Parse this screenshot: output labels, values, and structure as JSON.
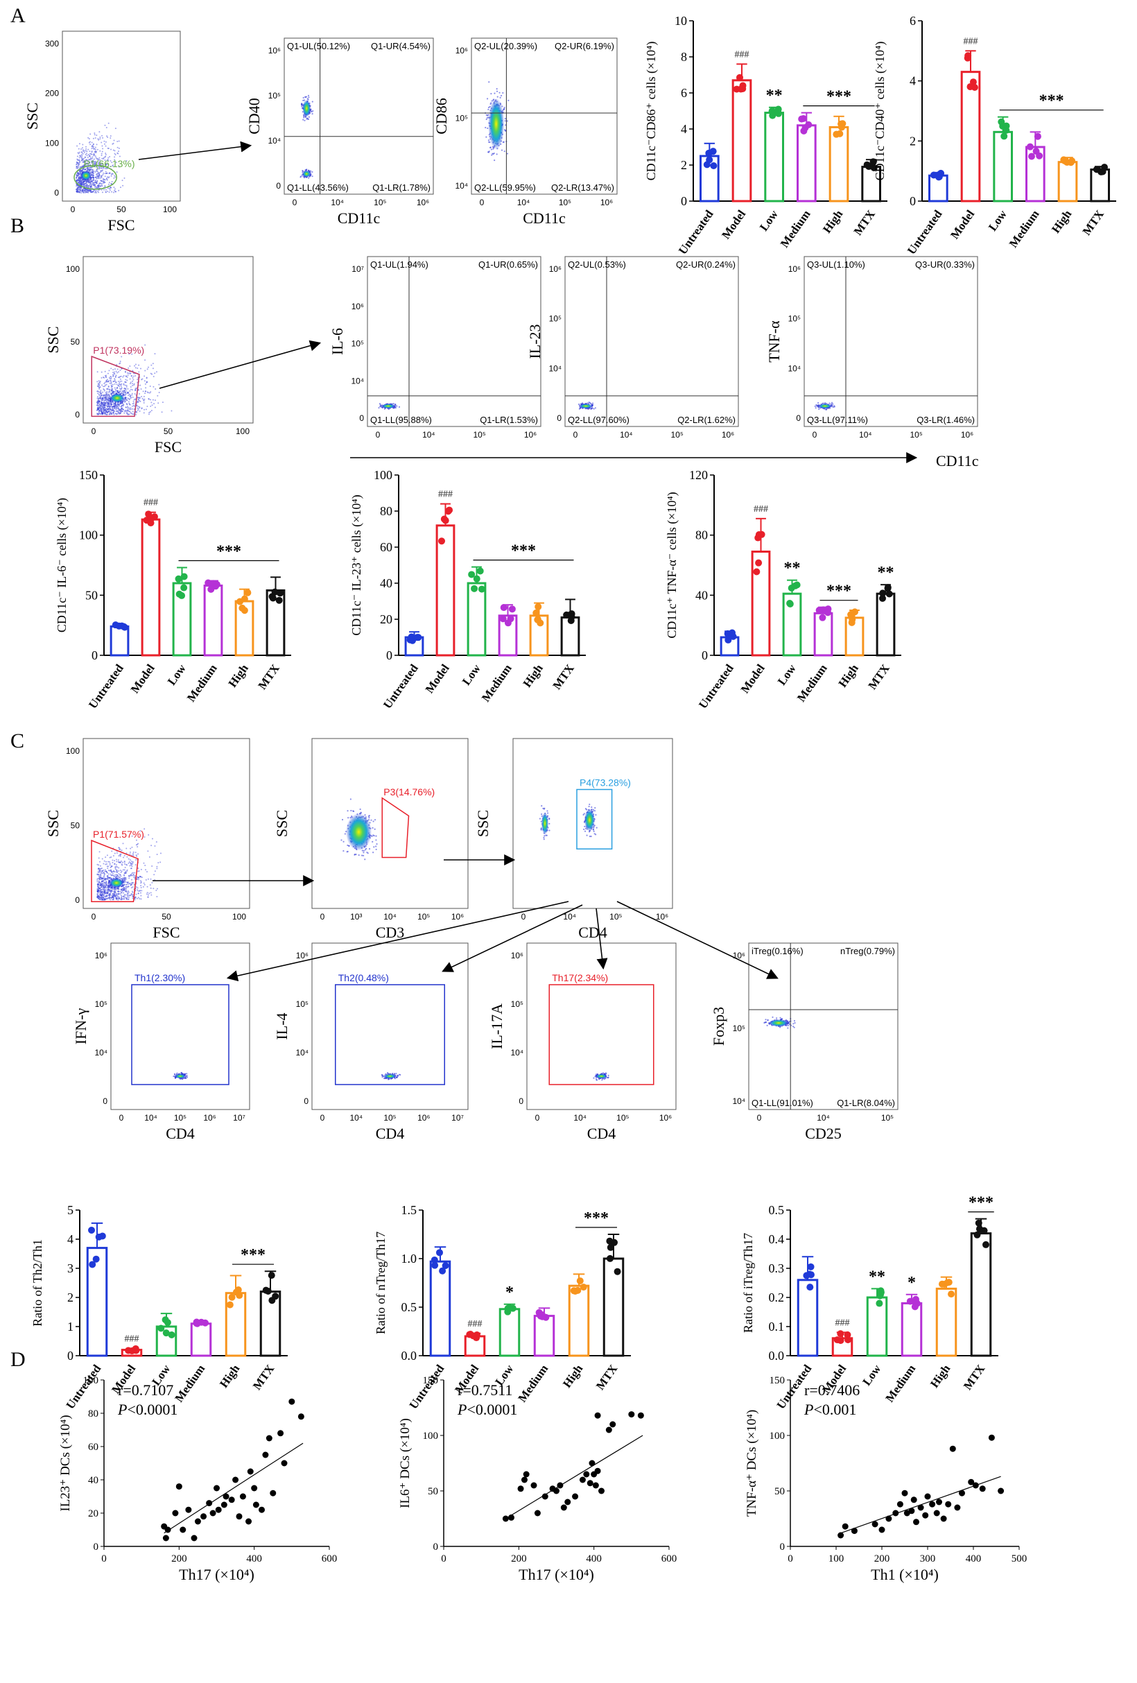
{
  "panel_labels": [
    "A",
    "B",
    "C",
    "D"
  ],
  "groups": [
    "Untreated",
    "Model",
    "Low",
    "Medium",
    "High",
    "MTX"
  ],
  "group_colors": [
    "#1f3ad8",
    "#e8202a",
    "#22b44b",
    "#b531d6",
    "#f7941d",
    "#111111"
  ],
  "flow_plots": [
    {
      "id": "A1",
      "xlabel": "FSC",
      "ylabel": "SSC",
      "xticks": [
        "0",
        "50",
        "100"
      ],
      "yticks": [
        "0",
        "100",
        "200",
        "300"
      ],
      "gate": "P1(66.13%)",
      "gate_color": "#6ab04c",
      "gate_type": "ellipse",
      "quads": []
    },
    {
      "id": "A2",
      "xlabel": "CD11c",
      "ylabel": "CD40",
      "xticks": [
        "0",
        "10⁴",
        "10⁵",
        "10⁶"
      ],
      "yticks": [
        "0",
        "10⁴",
        "10⁵",
        "10⁶"
      ],
      "gate": "",
      "gate_type": "quad",
      "quads": [
        "Q1-UL(50.12%)",
        "Q1-UR(4.54%)",
        "Q1-LL(43.56%)",
        "Q1-LR(1.78%)"
      ]
    },
    {
      "id": "A3",
      "xlabel": "CD11c",
      "ylabel": "CD86",
      "xticks": [
        "0",
        "10⁴",
        "10⁵",
        "10⁶"
      ],
      "yticks": [
        "10⁴",
        "10⁵",
        "10⁶"
      ],
      "gate": "",
      "gate_type": "quad",
      "quads": [
        "Q2-UL(20.39%)",
        "Q2-UR(6.19%)",
        "Q2-LL(59.95%)",
        "Q2-LR(13.47%)"
      ]
    },
    {
      "id": "B1",
      "xlabel": "FSC",
      "ylabel": "SSC",
      "xticks": [
        "0",
        "50",
        "100"
      ],
      "yticks": [
        "0",
        "50",
        "100"
      ],
      "gate": "P1(73.19%)",
      "gate_color": "#c0335f",
      "gate_type": "poly",
      "quads": []
    },
    {
      "id": "B2",
      "xlabel": "",
      "ylabel": "IL-6",
      "xticks": [
        "0",
        "10⁴",
        "10⁵",
        "10⁶"
      ],
      "yticks": [
        "0",
        "10⁴",
        "10⁵",
        "10⁶",
        "10⁷"
      ],
      "gate": "",
      "gate_type": "quad",
      "quads": [
        "Q1-UL(1.94%)",
        "Q1-UR(0.65%)",
        "Q1-LL(95.88%)",
        "Q1-LR(1.53%)"
      ]
    },
    {
      "id": "B3",
      "xlabel": "",
      "ylabel": "IL-23",
      "xticks": [
        "0",
        "10⁴",
        "10⁵",
        "10⁶"
      ],
      "yticks": [
        "0",
        "10⁴",
        "10⁵",
        "10⁶"
      ],
      "gate": "",
      "gate_type": "quad",
      "quads": [
        "Q2-UL(0.53%)",
        "Q2-UR(0.24%)",
        "Q2-LL(97.60%)",
        "Q2-LR(1.62%)"
      ]
    },
    {
      "id": "B4",
      "xlabel": "",
      "ylabel": "TNF-α",
      "xticks": [
        "0",
        "10⁴",
        "10⁵",
        "10⁶"
      ],
      "yticks": [
        "0",
        "10⁴",
        "10⁵",
        "10⁶"
      ],
      "gate": "",
      "gate_type": "quad",
      "quads": [
        "Q3-UL(1.10%)",
        "Q3-UR(0.33%)",
        "Q3-LL(97.11%)",
        "Q3-LR(1.46%)"
      ]
    },
    {
      "id": "C1",
      "xlabel": "FSC",
      "ylabel": "SSC",
      "xticks": [
        "0",
        "50",
        "100"
      ],
      "yticks": [
        "0",
        "50",
        "100"
      ],
      "gate": "P1(71.57%)",
      "gate_color": "#e8202a",
      "gate_type": "poly",
      "quads": []
    },
    {
      "id": "C2",
      "xlabel": "CD3",
      "ylabel": "SSC",
      "xticks": [
        "0",
        "10³",
        "10⁴",
        "10⁵",
        "10⁶"
      ],
      "yticks": [],
      "gate": "P3(14.76%)",
      "gate_color": "#e8202a",
      "gate_type": "poly",
      "quads": []
    },
    {
      "id": "C3",
      "xlabel": "CD4",
      "ylabel": "SSC",
      "xticks": [
        "0",
        "10⁴",
        "10⁵",
        "10⁶"
      ],
      "yticks": [],
      "gate": "P4(73.28%)",
      "gate_color": "#2a9fe0",
      "gate_type": "rect",
      "quads": []
    },
    {
      "id": "C4",
      "xlabel": "CD4",
      "ylabel": "IFN-γ",
      "xticks": [
        "0",
        "10⁴",
        "10⁵",
        "10⁶",
        "10⁷"
      ],
      "yticks": [
        "0",
        "10⁴",
        "10⁵",
        "10⁶"
      ],
      "gate": "Th1(2.30%)",
      "gate_color": "#2233cc",
      "gate_type": "rect",
      "quads": []
    },
    {
      "id": "C5",
      "xlabel": "CD4",
      "ylabel": "IL-4",
      "xticks": [
        "0",
        "10⁴",
        "10⁵",
        "10⁶",
        "10⁷"
      ],
      "yticks": [
        "0",
        "10⁴",
        "10⁵",
        "10⁶"
      ],
      "gate": "Th2(0.48%)",
      "gate_color": "#2233cc",
      "gate_type": "rect",
      "quads": []
    },
    {
      "id": "C6",
      "xlabel": "CD4",
      "ylabel": "IL-17A",
      "xticks": [
        "0",
        "10⁴",
        "10⁵",
        "10⁶"
      ],
      "yticks": [
        "0",
        "10⁴",
        "10⁵",
        "10⁶"
      ],
      "gate": "Th17(2.34%)",
      "gate_color": "#e8202a",
      "gate_type": "rect",
      "quads": []
    },
    {
      "id": "C7",
      "xlabel": "CD25",
      "ylabel": "Foxp3",
      "xticks": [
        "0",
        "10⁴",
        "10⁵"
      ],
      "yticks": [
        "10⁴",
        "10⁵",
        "10⁶"
      ],
      "gate": "",
      "gate_type": "quad",
      "quads": [
        "iTreg(0.16%)",
        "nTreg(0.79%)",
        "Q1-LL(91.01%)",
        "Q1-LR(8.04%)"
      ]
    }
  ],
  "shared_axis_label": "CD11c",
  "chart_data": [
    {
      "id": "A4",
      "type": "bar",
      "ylabel": "CD11c⁻CD86⁺ cells (×10⁴)",
      "ylim": [
        0,
        10
      ],
      "yticks": [
        0,
        2,
        4,
        6,
        8,
        10
      ],
      "values": [
        2.5,
        6.7,
        4.9,
        4.2,
        4.1,
        1.9
      ],
      "errors": [
        0.7,
        0.9,
        0.3,
        0.7,
        0.6,
        0.4
      ],
      "annotations": [
        {
          "text": "###",
          "group": 1
        },
        {
          "text": "**",
          "group": 2
        },
        {
          "text": "***",
          "from": 3,
          "to": 5
        }
      ]
    },
    {
      "id": "A5",
      "type": "bar",
      "ylabel": "CD11c⁻CD40⁺ cells (×10⁴)",
      "ylim": [
        0,
        6
      ],
      "yticks": [
        0,
        2,
        4,
        6
      ],
      "values": [
        0.85,
        4.3,
        2.3,
        1.8,
        1.3,
        1.05
      ],
      "errors": [
        0.1,
        0.7,
        0.5,
        0.5,
        0.15,
        0.1
      ],
      "annotations": [
        {
          "text": "###",
          "group": 1
        },
        {
          "text": "***",
          "from": 2,
          "to": 5
        }
      ]
    },
    {
      "id": "B5",
      "type": "bar",
      "ylabel": "CD11c⁻ IL-6⁻ cells (×10⁴)",
      "ylim": [
        0,
        150
      ],
      "yticks": [
        0,
        50,
        100,
        150
      ],
      "values": [
        24,
        113,
        60,
        58,
        45,
        54
      ],
      "errors": [
        2,
        6,
        13,
        4,
        10,
        11
      ],
      "annotations": [
        {
          "text": "###",
          "group": 1
        },
        {
          "text": "***",
          "from": 2,
          "to": 5
        }
      ]
    },
    {
      "id": "B6",
      "type": "bar",
      "ylabel": "CD11c⁻ IL-23⁺ cells (×10⁴)",
      "ylim": [
        0,
        100
      ],
      "yticks": [
        0,
        20,
        40,
        60,
        80,
        100
      ],
      "values": [
        10,
        72,
        40,
        22,
        22,
        21
      ],
      "errors": [
        3,
        12,
        9,
        6,
        7,
        10
      ],
      "annotations": [
        {
          "text": "###",
          "group": 1
        },
        {
          "text": "***",
          "from": 2,
          "to": 5
        }
      ]
    },
    {
      "id": "B7",
      "type": "bar",
      "ylabel": "CD11c⁺ TNF-α⁻ cells (×10⁴)",
      "ylim": [
        0,
        120
      ],
      "yticks": [
        0,
        40,
        80,
        120
      ],
      "values": [
        12,
        69,
        41,
        28,
        25,
        41
      ],
      "errors": [
        4,
        22,
        9,
        4,
        5,
        6
      ],
      "annotations": [
        {
          "text": "###",
          "group": 1
        },
        {
          "text": "**",
          "group": 2
        },
        {
          "text": "***",
          "from": 3,
          "to": 4
        },
        {
          "text": "**",
          "group": 5
        }
      ]
    },
    {
      "id": "C8",
      "type": "bar",
      "ylabel": "Ratio of  Th2/Th1",
      "ylim": [
        0,
        5
      ],
      "yticks": [
        0,
        1,
        2,
        3,
        4,
        5
      ],
      "values": [
        3.7,
        0.2,
        1.0,
        1.1,
        2.15,
        2.2
      ],
      "errors": [
        0.85,
        0.05,
        0.45,
        0.1,
        0.6,
        0.7
      ],
      "annotations": [
        {
          "text": "###",
          "group": 1
        },
        {
          "text": "***",
          "from": 4,
          "to": 5
        }
      ]
    },
    {
      "id": "C9",
      "type": "bar",
      "ylabel": "Ratio of  nTreg/Th17",
      "ylim": [
        0,
        1.5
      ],
      "yticks": [
        "0.0",
        "0.5",
        "1.0",
        "1.5"
      ],
      "values": [
        0.97,
        0.2,
        0.48,
        0.41,
        0.72,
        1.0
      ],
      "errors": [
        0.15,
        0.03,
        0.05,
        0.08,
        0.12,
        0.25
      ],
      "annotations": [
        {
          "text": "###",
          "group": 1
        },
        {
          "text": "*",
          "group": 2
        },
        {
          "text": "***",
          "from": 4,
          "to": 5
        }
      ]
    },
    {
      "id": "C10",
      "type": "bar",
      "ylabel": "Ratio of  iTreg/Th17",
      "ylim": [
        0,
        0.5
      ],
      "yticks": [
        "0.0",
        "0.1",
        "0.2",
        "0.3",
        "0.4",
        "0.5"
      ],
      "values": [
        0.26,
        0.06,
        0.2,
        0.18,
        0.23,
        0.42
      ],
      "errors": [
        0.08,
        0.02,
        0.03,
        0.03,
        0.04,
        0.05
      ],
      "annotations": [
        {
          "text": "###",
          "group": 1
        },
        {
          "text": "**",
          "group": 2
        },
        {
          "text": "*",
          "group": 3
        },
        {
          "text": "***",
          "from": 5,
          "to": 5
        }
      ]
    },
    {
      "id": "D1",
      "type": "scatter",
      "xlabel": "Th17 (×10⁴)",
      "ylabel": "IL23⁺ DCs (×10⁴)",
      "xlim": [
        0,
        600
      ],
      "ylim": [
        0,
        100
      ],
      "xticks": [
        0,
        200,
        400,
        600
      ],
      "yticks": [
        0,
        20,
        40,
        60,
        80,
        100
      ],
      "r": "r=0.7107",
      "p_label": "P",
      "p_value": "<0.0001",
      "fit": [
        [
          160,
          8
        ],
        [
          530,
          62
        ]
      ],
      "points": [
        [
          160,
          12
        ],
        [
          165,
          5
        ],
        [
          170,
          10
        ],
        [
          190,
          20
        ],
        [
          200,
          36
        ],
        [
          210,
          10
        ],
        [
          225,
          22
        ],
        [
          240,
          5
        ],
        [
          250,
          15
        ],
        [
          265,
          18
        ],
        [
          280,
          26
        ],
        [
          290,
          20
        ],
        [
          300,
          35
        ],
        [
          305,
          22
        ],
        [
          320,
          25
        ],
        [
          325,
          30
        ],
        [
          340,
          28
        ],
        [
          350,
          40
        ],
        [
          360,
          18
        ],
        [
          370,
          30
        ],
        [
          385,
          15
        ],
        [
          390,
          45
        ],
        [
          400,
          35
        ],
        [
          405,
          25
        ],
        [
          420,
          22
        ],
        [
          430,
          55
        ],
        [
          440,
          65
        ],
        [
          450,
          32
        ],
        [
          470,
          68
        ],
        [
          480,
          50
        ],
        [
          500,
          87
        ],
        [
          525,
          78
        ]
      ]
    },
    {
      "id": "D2",
      "type": "scatter",
      "xlabel": "Th17 (×10⁴)",
      "ylabel": "IL6⁺ DCs (×10⁴)",
      "xlim": [
        0,
        600
      ],
      "ylim": [
        0,
        150
      ],
      "xticks": [
        0,
        200,
        400,
        600
      ],
      "yticks": [
        0,
        50,
        100,
        150
      ],
      "r": "r=0.7511",
      "p_label": "P",
      "p_value": "<0.0001",
      "fit": [
        [
          165,
          25
        ],
        [
          530,
          100
        ]
      ],
      "points": [
        [
          165,
          25
        ],
        [
          180,
          26
        ],
        [
          205,
          52
        ],
        [
          215,
          60
        ],
        [
          220,
          65
        ],
        [
          240,
          55
        ],
        [
          250,
          30
        ],
        [
          270,
          45
        ],
        [
          290,
          52
        ],
        [
          300,
          50
        ],
        [
          310,
          55
        ],
        [
          320,
          35
        ],
        [
          330,
          40
        ],
        [
          350,
          45
        ],
        [
          370,
          60
        ],
        [
          380,
          65
        ],
        [
          390,
          57
        ],
        [
          395,
          75
        ],
        [
          400,
          65
        ],
        [
          405,
          55
        ],
        [
          410,
          68
        ],
        [
          420,
          50
        ],
        [
          440,
          105
        ],
        [
          450,
          110
        ],
        [
          410,
          118
        ],
        [
          500,
          119
        ],
        [
          525,
          118
        ]
      ]
    },
    {
      "id": "D3",
      "type": "scatter",
      "xlabel": "Th1 (×10⁴)",
      "ylabel": "TNF-α⁺ DCs (×10⁴)",
      "xlim": [
        0,
        500
      ],
      "ylim": [
        0,
        150
      ],
      "xticks": [
        0,
        100,
        200,
        300,
        400,
        500
      ],
      "yticks": [
        0,
        50,
        100,
        150
      ],
      "r": "r=0.7406",
      "p_label": "P",
      "p_value": "<0.001",
      "fit": [
        [
          110,
          12
        ],
        [
          460,
          63
        ]
      ],
      "points": [
        [
          110,
          10
        ],
        [
          120,
          18
        ],
        [
          140,
          14
        ],
        [
          185,
          20
        ],
        [
          200,
          15
        ],
        [
          215,
          25
        ],
        [
          230,
          30
        ],
        [
          240,
          38
        ],
        [
          250,
          48
        ],
        [
          255,
          30
        ],
        [
          265,
          32
        ],
        [
          270,
          42
        ],
        [
          275,
          22
        ],
        [
          285,
          35
        ],
        [
          295,
          28
        ],
        [
          300,
          45
        ],
        [
          310,
          38
        ],
        [
          320,
          30
        ],
        [
          325,
          40
        ],
        [
          335,
          25
        ],
        [
          345,
          38
        ],
        [
          355,
          88
        ],
        [
          365,
          35
        ],
        [
          375,
          48
        ],
        [
          395,
          58
        ],
        [
          405,
          55
        ],
        [
          420,
          52
        ],
        [
          440,
          98
        ],
        [
          460,
          50
        ]
      ]
    }
  ]
}
